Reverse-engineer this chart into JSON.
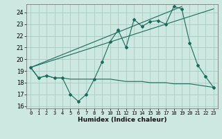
{
  "xlabel": "Humidex (Indice chaleur)",
  "bg_color": "#cce8e0",
  "grid_color": "#aaccc4",
  "line_color": "#1a6b5a",
  "xlim": [
    -0.5,
    23.5
  ],
  "ylim": [
    15.8,
    24.7
  ],
  "xticks": [
    0,
    1,
    2,
    3,
    4,
    5,
    6,
    7,
    8,
    9,
    10,
    11,
    12,
    13,
    14,
    15,
    16,
    17,
    18,
    19,
    20,
    21,
    22,
    23
  ],
  "yticks": [
    16,
    17,
    18,
    19,
    20,
    21,
    22,
    23,
    24
  ],
  "series1_x": [
    0,
    1,
    2,
    3,
    4,
    5,
    6,
    7,
    8,
    9,
    10,
    11,
    12,
    13,
    14,
    15,
    16,
    17,
    18,
    19,
    20,
    21,
    22,
    23
  ],
  "series1_y": [
    19.3,
    18.4,
    18.6,
    18.4,
    18.4,
    17.0,
    16.4,
    17.0,
    18.3,
    19.8,
    21.5,
    22.5,
    21.0,
    23.4,
    22.8,
    23.2,
    23.3,
    23.0,
    24.5,
    24.3,
    21.4,
    19.5,
    18.5,
    17.6
  ],
  "series2_x": [
    0,
    1,
    2,
    3,
    4,
    5,
    6,
    7,
    8,
    9,
    10,
    11,
    12,
    13,
    14,
    15,
    16,
    17,
    18,
    19,
    20,
    21,
    22,
    23
  ],
  "series2_y": [
    19.3,
    18.4,
    18.6,
    18.4,
    18.4,
    18.3,
    18.3,
    18.3,
    18.3,
    18.3,
    18.3,
    18.2,
    18.1,
    18.1,
    18.1,
    18.0,
    18.0,
    18.0,
    17.9,
    17.9,
    17.9,
    17.8,
    17.7,
    17.6
  ],
  "series3_x": [
    0,
    23
  ],
  "series3_y": [
    19.3,
    24.3
  ],
  "series4_x": [
    0,
    19
  ],
  "series4_y": [
    19.3,
    24.5
  ]
}
